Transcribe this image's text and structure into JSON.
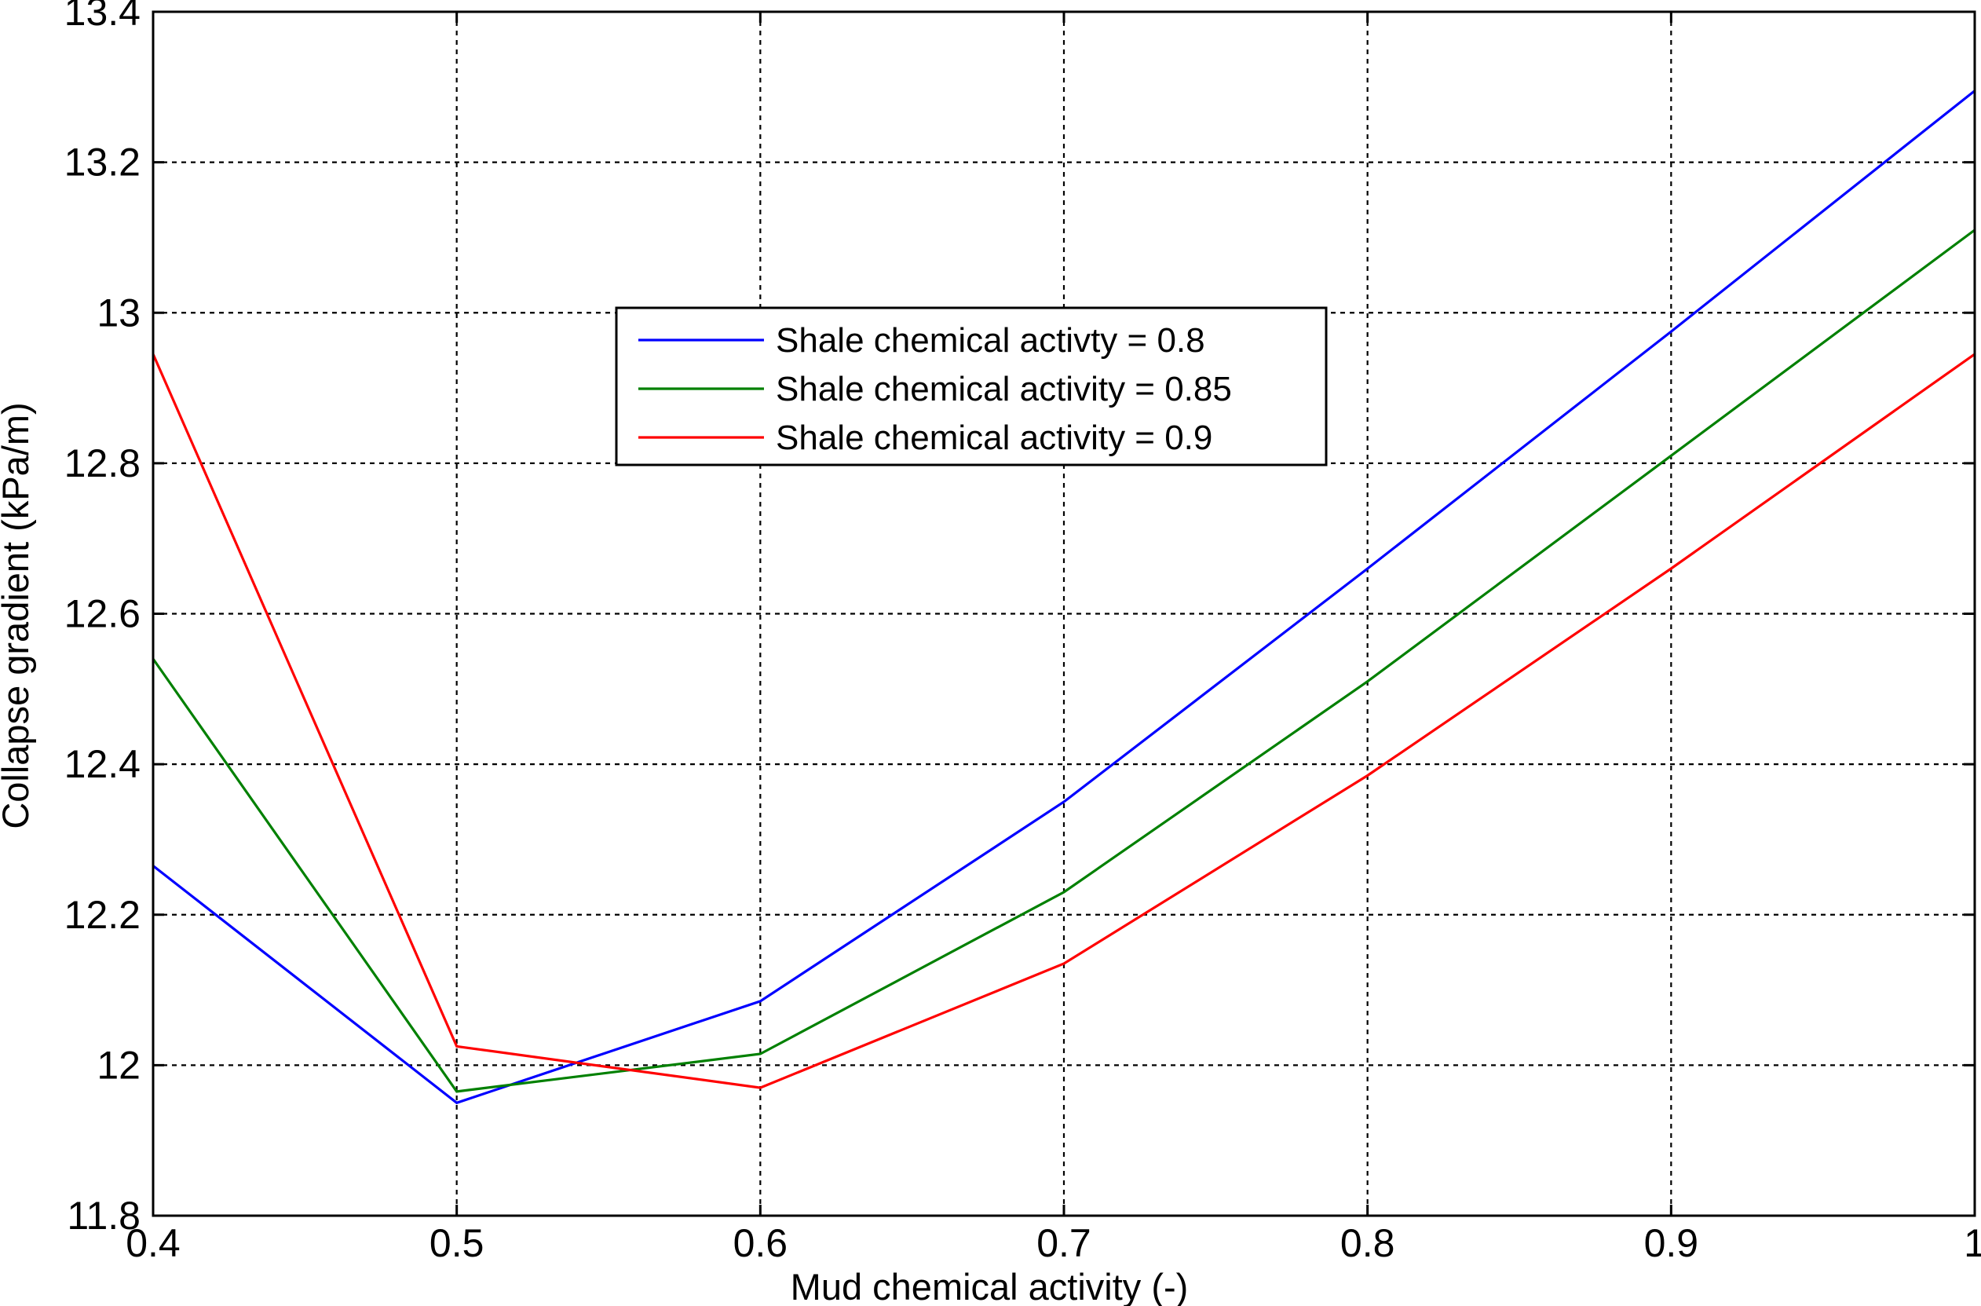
{
  "chart_data": {
    "type": "line",
    "title": "",
    "xlabel": "Mud chemical activity (-)",
    "ylabel": "Collapse gradient (kPa/m)",
    "xlim": [
      0.4,
      1.0
    ],
    "ylim": [
      11.8,
      13.4
    ],
    "x_ticks": [
      0.4,
      0.5,
      0.6,
      0.7,
      0.8,
      0.9,
      1.0
    ],
    "x_tick_labels": [
      "0.4",
      "0.5",
      "0.6",
      "0.7",
      "0.8",
      "0.9",
      "1"
    ],
    "y_ticks": [
      11.8,
      12.0,
      12.2,
      12.4,
      12.6,
      12.8,
      13.0,
      13.2,
      13.4
    ],
    "y_tick_labels": [
      "11.8",
      "12",
      "12.2",
      "12.4",
      "12.6",
      "12.8",
      "13",
      "13.2",
      "13.4"
    ],
    "grid": true,
    "legend_position": "top-center",
    "x": [
      0.4,
      0.5,
      0.6,
      0.7,
      0.8,
      0.9,
      1.0
    ],
    "series": [
      {
        "name": "Shale chemical activty = 0.8",
        "color": "#0000ff",
        "values": [
          12.265,
          11.95,
          12.085,
          12.35,
          12.66,
          12.975,
          13.295
        ]
      },
      {
        "name": "Shale chemical activity = 0.85",
        "color": "#008000",
        "values": [
          12.54,
          11.965,
          12.015,
          12.23,
          12.51,
          12.81,
          13.11
        ]
      },
      {
        "name": "Shale chemical activity = 0.9",
        "color": "#ff0000",
        "values": [
          12.945,
          12.025,
          11.97,
          12.135,
          12.385,
          12.66,
          12.945
        ]
      }
    ]
  }
}
